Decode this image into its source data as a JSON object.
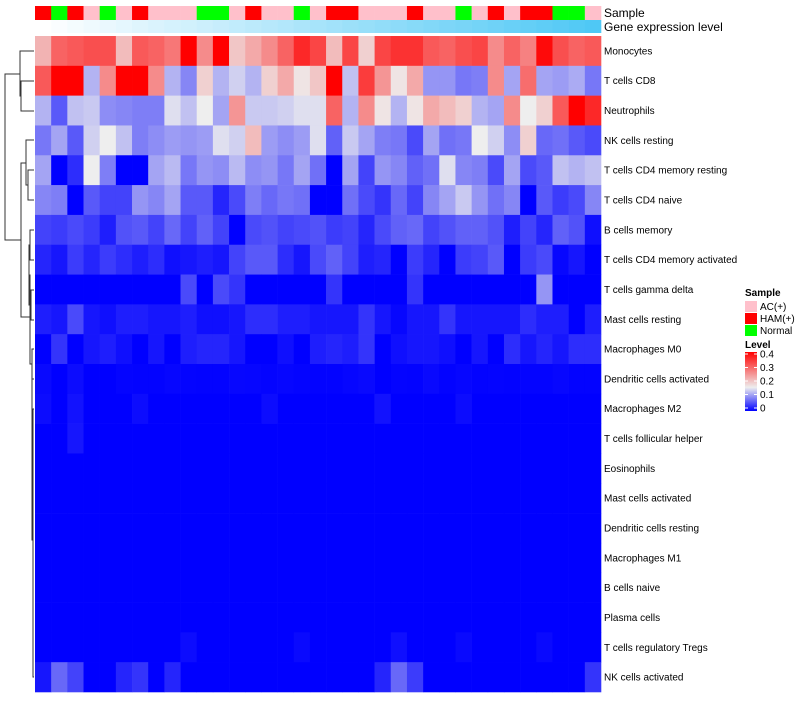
{
  "chart_data": {
    "type": "heatmap",
    "title": "",
    "annotation_labels": {
      "sample": "Sample",
      "gene_expression": "Gene expression level"
    },
    "legend": {
      "placement": "right",
      "sample_title": "Sample",
      "sample_groups": [
        {
          "name": "AC(+)",
          "color": "#FFC0CB"
        },
        {
          "name": "HAM(+)",
          "color": "#FF0000"
        },
        {
          "name": "Normal",
          "color": "#00FF00"
        }
      ],
      "level_title": "Level",
      "level_ticks": [
        "0.4",
        "0.3",
        "0.2",
        "0.1",
        "0"
      ],
      "level_range": [
        0,
        0.4
      ],
      "level_colors": {
        "low": "#0000FF",
        "mid": "#EEEEEE",
        "high": "#FF0000",
        "mid_value": 0.16
      }
    },
    "gene_expression_colors": {
      "low": "#FFFFFF",
      "high": "#4FC8F5"
    },
    "columns_sample": [
      "HAM(+)",
      "Normal",
      "HAM(+)",
      "AC(+)",
      "Normal",
      "AC(+)",
      "HAM(+)",
      "AC(+)",
      "AC(+)",
      "AC(+)",
      "Normal",
      "Normal",
      "AC(+)",
      "HAM(+)",
      "AC(+)",
      "AC(+)",
      "Normal",
      "AC(+)",
      "HAM(+)",
      "HAM(+)",
      "AC(+)",
      "AC(+)",
      "AC(+)",
      "HAM(+)",
      "AC(+)",
      "AC(+)",
      "Normal",
      "AC(+)",
      "HAM(+)",
      "AC(+)",
      "HAM(+)",
      "HAM(+)",
      "Normal",
      "Normal",
      "AC(+)"
    ],
    "columns_gene_expression_relative": [
      0,
      0.03,
      0.06,
      0.09,
      0.12,
      0.15,
      0.18,
      0.21,
      0.24,
      0.26,
      0.29,
      0.32,
      0.35,
      0.38,
      0.41,
      0.44,
      0.47,
      0.5,
      0.53,
      0.56,
      0.59,
      0.62,
      0.65,
      0.68,
      0.71,
      0.74,
      0.76,
      0.79,
      0.82,
      0.85,
      0.88,
      0.91,
      0.94,
      0.97,
      1
    ],
    "rows": [
      {
        "label": "Monocytes",
        "values": [
          0.22,
          0.3,
          0.31,
          0.32,
          0.32,
          0.21,
          0.31,
          0.3,
          0.28,
          0.4,
          0.26,
          0.4,
          0.2,
          0.23,
          0.26,
          0.3,
          0.36,
          0.33,
          0.21,
          0.33,
          0.19,
          0.33,
          0.35,
          0.35,
          0.31,
          0.3,
          0.32,
          0.33,
          0.26,
          0.3,
          0.27,
          0.39,
          0.32,
          0.3,
          0.31
        ]
      },
      {
        "label": "T cells CD8",
        "values": [
          0.31,
          0.4,
          0.4,
          0.12,
          0.26,
          0.4,
          0.4,
          0.26,
          0.12,
          0.09,
          0.19,
          0.12,
          0.14,
          0.12,
          0.19,
          0.23,
          0.17,
          0.2,
          0.4,
          0.13,
          0.34,
          0.25,
          0.17,
          0.23,
          0.1,
          0.1,
          0.08,
          0.085,
          0.26,
          0.11,
          0.29,
          0.11,
          0.105,
          0.115,
          0.08
        ]
      },
      {
        "label": "Neutrophils",
        "values": [
          0.12,
          0.06,
          0.13,
          0.135,
          0.095,
          0.09,
          0.085,
          0.085,
          0.15,
          0.13,
          0.16,
          0.11,
          0.25,
          0.135,
          0.135,
          0.14,
          0.15,
          0.15,
          0.3,
          0.12,
          0.26,
          0.17,
          0.12,
          0.17,
          0.23,
          0.21,
          0.19,
          0.12,
          0.11,
          0.26,
          0.16,
          0.19,
          0.31,
          0.4,
          0.36
        ]
      },
      {
        "label": "NK cells resting",
        "values": [
          0.08,
          0.11,
          0.06,
          0.14,
          0.16,
          0.13,
          0.085,
          0.095,
          0.105,
          0.1,
          0.105,
          0.15,
          0.14,
          0.21,
          0.105,
          0.095,
          0.105,
          0.15,
          0.065,
          0.135,
          0.11,
          0.085,
          0.08,
          0.05,
          0.11,
          0.075,
          0.08,
          0.16,
          0.14,
          0.095,
          0.19,
          0.07,
          0.075,
          0.06,
          0.05
        ]
      },
      {
        "label": "T cells CD4 memory resting",
        "values": [
          0.11,
          0,
          0.03,
          0.16,
          0.085,
          0,
          0,
          0.11,
          0.125,
          0.08,
          0.1,
          0.095,
          0.125,
          0.095,
          0.1,
          0.08,
          0.11,
          0.075,
          0,
          0.11,
          0.045,
          0.1,
          0.09,
          0.065,
          0.075,
          0.15,
          0.09,
          0.085,
          0.05,
          0.11,
          0.05,
          0.06,
          0.13,
          0.12,
          0.13
        ]
      },
      {
        "label": "T cells CD4 naive",
        "values": [
          0.09,
          0.085,
          0,
          0.06,
          0.045,
          0.045,
          0.1,
          0.09,
          0.11,
          0.06,
          0.06,
          0.025,
          0.05,
          0.085,
          0.07,
          0.08,
          0.075,
          0,
          0,
          0.075,
          0.05,
          0.035,
          0.07,
          0.045,
          0.09,
          0.11,
          0.135,
          0.1,
          0.075,
          0.09,
          0,
          0.06,
          0.04,
          0.05,
          0.09
        ]
      },
      {
        "label": "B cells memory",
        "values": [
          0.045,
          0.04,
          0.05,
          0.04,
          0.02,
          0.055,
          0.06,
          0.045,
          0.07,
          0.045,
          0.065,
          0.045,
          0,
          0.05,
          0.055,
          0.045,
          0.05,
          0.055,
          0.04,
          0.045,
          0.025,
          0.05,
          0.065,
          0.07,
          0.045,
          0.055,
          0.065,
          0.065,
          0.055,
          0.02,
          0.045,
          0.025,
          0.065,
          0.055,
          0.01
        ]
      },
      {
        "label": "T cells CD4 memory activated",
        "values": [
          0.025,
          0.015,
          0.04,
          0.025,
          0.04,
          0.03,
          0.02,
          0.03,
          0.01,
          0.015,
          0.02,
          0.015,
          0.045,
          0.06,
          0.06,
          0.03,
          0.015,
          0.05,
          0.065,
          0.045,
          0.02,
          0.025,
          0,
          0.04,
          0.025,
          0,
          0.04,
          0.045,
          0.06,
          0,
          0.04,
          0.05,
          0.005,
          0.015,
          0
        ]
      },
      {
        "label": "T cells gamma delta",
        "values": [
          0,
          0,
          0,
          0,
          0,
          0,
          0,
          0,
          0,
          0.05,
          0,
          0.05,
          0.035,
          0,
          0,
          0,
          0,
          0,
          0.035,
          0,
          0,
          0,
          0,
          0.035,
          0,
          0,
          0,
          0,
          0,
          0,
          0,
          0.1,
          0,
          0,
          0
        ]
      },
      {
        "label": "Mast cells resting",
        "values": [
          0.02,
          0.015,
          0.05,
          0.015,
          0.01,
          0.02,
          0.02,
          0.015,
          0.015,
          0.02,
          0.01,
          0.01,
          0.015,
          0.03,
          0.03,
          0.02,
          0.02,
          0.015,
          0.015,
          0.015,
          0.035,
          0.015,
          0.005,
          0.015,
          0.015,
          0.035,
          0.015,
          0.015,
          0.015,
          0.015,
          0.03,
          0.02,
          0.02,
          0,
          0.02
        ]
      },
      {
        "label": "Macrophages M0",
        "values": [
          0,
          0.035,
          0,
          0.015,
          0.02,
          0.01,
          0,
          0.015,
          0,
          0.02,
          0.025,
          0.025,
          0.015,
          0,
          0,
          0.01,
          0,
          0.02,
          0.025,
          0.02,
          0.035,
          0,
          0.01,
          0.015,
          0.015,
          0.01,
          0,
          0.015,
          0,
          0.03,
          0.015,
          0.025,
          0.015,
          0.03,
          0.03
        ]
      },
      {
        "label": "Dendritic cells activated",
        "values": [
          0.006,
          0,
          0.008,
          0,
          0,
          0.003,
          0.002,
          0.002,
          0.004,
          0.003,
          0.002,
          0.002,
          0.005,
          0.004,
          0.003,
          0.004,
          0.003,
          0.002,
          0.002,
          0.004,
          0.006,
          0,
          0.003,
          0.002,
          0.006,
          0.002,
          0.004,
          0.002,
          0.003,
          0.002,
          0.003,
          0.003,
          0.005,
          0.002,
          0.002
        ]
      },
      {
        "label": "Macrophages M2",
        "values": [
          0.008,
          0,
          0.012,
          0,
          0,
          0,
          0.008,
          0,
          0,
          0,
          0,
          0,
          0,
          0,
          0.008,
          0,
          0,
          0,
          0,
          0,
          0,
          0.012,
          0,
          0,
          0,
          0,
          0.008,
          0,
          0,
          0,
          0,
          0,
          0,
          0,
          0
        ]
      },
      {
        "label": "T cells follicular helper",
        "values": [
          0,
          0,
          0.015,
          0,
          0,
          0,
          0,
          0,
          0,
          0,
          0,
          0,
          0,
          0,
          0,
          0,
          0,
          0,
          0,
          0,
          0,
          0,
          0,
          0,
          0,
          0,
          0,
          0,
          0,
          0,
          0,
          0,
          0,
          0,
          0
        ]
      },
      {
        "label": "Eosinophils",
        "values": [
          0,
          0,
          0,
          0,
          0,
          0,
          0,
          0,
          0,
          0,
          0,
          0,
          0,
          0,
          0,
          0,
          0,
          0,
          0,
          0,
          0,
          0,
          0,
          0,
          0,
          0,
          0,
          0,
          0,
          0,
          0,
          0,
          0,
          0,
          0
        ]
      },
      {
        "label": "Mast cells activated",
        "values": [
          0,
          0,
          0,
          0,
          0,
          0,
          0,
          0,
          0,
          0,
          0,
          0,
          0,
          0,
          0,
          0,
          0,
          0,
          0,
          0,
          0,
          0,
          0,
          0,
          0,
          0,
          0,
          0,
          0,
          0,
          0,
          0,
          0,
          0,
          0
        ]
      },
      {
        "label": "Dendritic cells resting",
        "values": [
          0,
          0,
          0,
          0,
          0,
          0,
          0,
          0,
          0,
          0,
          0,
          0,
          0,
          0,
          0,
          0,
          0,
          0,
          0,
          0,
          0,
          0,
          0,
          0,
          0,
          0,
          0,
          0,
          0,
          0,
          0,
          0,
          0,
          0,
          0
        ]
      },
      {
        "label": "Macrophages M1",
        "values": [
          0,
          0,
          0,
          0,
          0,
          0,
          0,
          0,
          0,
          0,
          0,
          0,
          0,
          0,
          0,
          0,
          0,
          0,
          0,
          0,
          0,
          0,
          0,
          0,
          0,
          0,
          0,
          0,
          0,
          0,
          0,
          0,
          0,
          0,
          0
        ]
      },
      {
        "label": "B cells naive",
        "values": [
          0,
          0,
          0,
          0,
          0,
          0,
          0,
          0,
          0,
          0,
          0,
          0,
          0,
          0,
          0,
          0,
          0,
          0,
          0,
          0,
          0,
          0,
          0,
          0,
          0,
          0,
          0,
          0,
          0,
          0,
          0,
          0,
          0,
          0,
          0
        ]
      },
      {
        "label": "Plasma cells",
        "values": [
          0,
          0,
          0,
          0,
          0,
          0,
          0,
          0,
          0,
          0,
          0,
          0,
          0,
          0,
          0,
          0,
          0,
          0,
          0,
          0,
          0,
          0,
          0,
          0,
          0,
          0,
          0,
          0,
          0,
          0,
          0,
          0,
          0,
          0,
          0
        ]
      },
      {
        "label": "T cells regulatory  Tregs",
        "values": [
          0,
          0,
          0,
          0,
          0,
          0,
          0,
          0,
          0,
          0.008,
          0,
          0,
          0,
          0,
          0,
          0,
          0.006,
          0,
          0,
          0,
          0,
          0,
          0.01,
          0,
          0,
          0,
          0.006,
          0,
          0,
          0,
          0,
          0.006,
          0,
          0,
          0
        ]
      },
      {
        "label": "NK cells activated",
        "values": [
          0.015,
          0.07,
          0.045,
          0,
          0,
          0.025,
          0.035,
          0,
          0.025,
          0,
          0,
          0,
          0,
          0,
          0,
          0,
          0,
          0,
          0,
          0,
          0,
          0.025,
          0.07,
          0.04,
          0,
          0,
          0,
          0,
          0,
          0,
          0,
          0,
          0,
          0,
          0.035
        ]
      }
    ]
  }
}
